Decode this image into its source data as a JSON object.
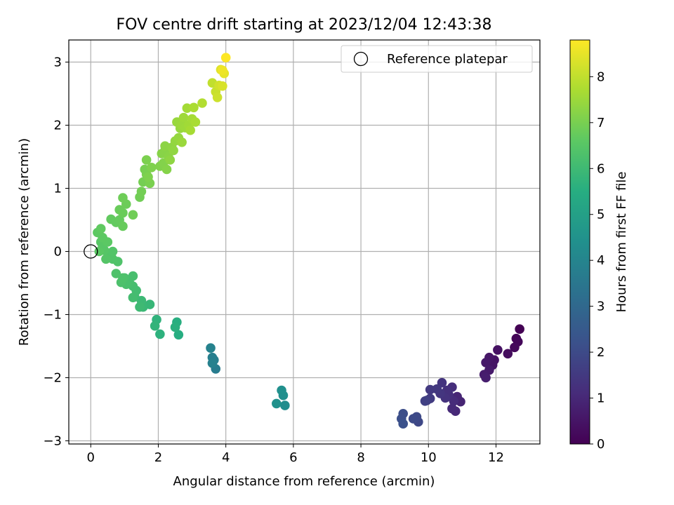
{
  "chart_data": {
    "type": "scatter",
    "title": "FOV centre drift starting at 2023/12/04 12:43:38",
    "xlabel": "Angular distance from reference (arcmin)",
    "ylabel": "Rotation from reference (arcmin)",
    "xlim": [
      -0.65,
      13.3
    ],
    "ylim": [
      -3.05,
      3.35
    ],
    "xticks": [
      0,
      2,
      4,
      6,
      8,
      10,
      12
    ],
    "yticks": [
      -3,
      -2,
      -1,
      0,
      1,
      2,
      3
    ],
    "grid": true,
    "legend": {
      "placement": "top-right",
      "entries": [
        {
          "label": "Reference platepar",
          "marker": "open-circle"
        }
      ]
    },
    "reference_point": {
      "x": 0,
      "y": 0
    },
    "colorbar": {
      "label": "Hours from first FF file",
      "range": [
        0,
        8.8
      ],
      "ticks": [
        0,
        1,
        2,
        3,
        4,
        5,
        6,
        7,
        8
      ],
      "colormap": "viridis"
    },
    "points": [
      [
        12.7,
        -1.23,
        0.0
      ],
      [
        12.6,
        -1.38,
        0.1
      ],
      [
        12.65,
        -1.43,
        0.15
      ],
      [
        12.55,
        -1.52,
        0.2
      ],
      [
        12.35,
        -1.62,
        0.3
      ],
      [
        12.05,
        -1.56,
        0.4
      ],
      [
        11.95,
        -1.72,
        0.45
      ],
      [
        11.9,
        -1.8,
        0.5
      ],
      [
        11.8,
        -1.68,
        0.55
      ],
      [
        11.7,
        -1.76,
        0.6
      ],
      [
        11.8,
        -1.88,
        0.65
      ],
      [
        11.65,
        -1.95,
        0.7
      ],
      [
        11.7,
        -2.0,
        0.75
      ],
      [
        10.95,
        -2.38,
        0.9
      ],
      [
        10.85,
        -2.3,
        0.95
      ],
      [
        10.8,
        -2.53,
        1.0
      ],
      [
        10.7,
        -2.49,
        1.05
      ],
      [
        10.75,
        -2.37,
        1.1
      ],
      [
        10.7,
        -2.15,
        1.15
      ],
      [
        10.6,
        -2.27,
        1.2
      ],
      [
        10.55,
        -2.2,
        1.25
      ],
      [
        10.5,
        -2.32,
        1.3
      ],
      [
        10.4,
        -2.08,
        1.35
      ],
      [
        10.35,
        -2.25,
        1.4
      ],
      [
        10.25,
        -2.18,
        1.45
      ],
      [
        10.05,
        -2.19,
        1.5
      ],
      [
        10.05,
        -2.33,
        1.55
      ],
      [
        9.95,
        -2.36,
        1.6
      ],
      [
        9.9,
        -2.37,
        1.7
      ],
      [
        9.7,
        -2.7,
        1.9
      ],
      [
        9.65,
        -2.62,
        1.95
      ],
      [
        9.55,
        -2.65,
        2.0
      ],
      [
        9.25,
        -2.57,
        2.1
      ],
      [
        9.2,
        -2.65,
        2.15
      ],
      [
        9.25,
        -2.73,
        2.2
      ],
      [
        3.7,
        -1.86,
        3.7
      ],
      [
        3.65,
        -1.72,
        3.75
      ],
      [
        3.6,
        -1.68,
        3.8
      ],
      [
        3.6,
        -1.77,
        3.85
      ],
      [
        3.55,
        -1.53,
        3.9
      ],
      [
        5.75,
        -2.44,
        4.3
      ],
      [
        5.7,
        -2.28,
        4.35
      ],
      [
        5.65,
        -2.2,
        4.4
      ],
      [
        5.5,
        -2.41,
        4.45
      ],
      [
        2.6,
        -1.32,
        5.5
      ],
      [
        2.55,
        -1.12,
        5.55
      ],
      [
        2.5,
        -1.2,
        5.6
      ],
      [
        2.05,
        -1.31,
        5.65
      ],
      [
        1.95,
        -1.08,
        5.7
      ],
      [
        1.9,
        -1.18,
        5.75
      ],
      [
        1.75,
        -0.84,
        5.85
      ],
      [
        1.55,
        -0.88,
        5.9
      ],
      [
        1.5,
        -0.78,
        5.95
      ],
      [
        1.45,
        -0.88,
        6.0
      ],
      [
        1.3,
        -0.72,
        6.05
      ],
      [
        1.35,
        -0.62,
        6.1
      ],
      [
        1.25,
        -0.73,
        6.12
      ],
      [
        1.25,
        -0.55,
        6.15
      ],
      [
        1.15,
        -0.5,
        6.18
      ],
      [
        1.25,
        -0.39,
        6.2
      ],
      [
        1.05,
        -0.52,
        6.22
      ],
      [
        1.0,
        -0.42,
        6.25
      ],
      [
        0.9,
        -0.49,
        6.28
      ],
      [
        0.95,
        -0.42,
        6.3
      ],
      [
        0.75,
        -0.35,
        6.32
      ],
      [
        0.8,
        -0.16,
        6.35
      ],
      [
        0.65,
        -0.12,
        6.38
      ],
      [
        0.6,
        -0.05,
        6.4
      ],
      [
        0.65,
        0.0,
        6.42
      ],
      [
        0.45,
        -0.12,
        6.45
      ],
      [
        0.4,
        0.02,
        6.48
      ],
      [
        0.35,
        0.08,
        6.5
      ],
      [
        0.3,
        0.15,
        6.52
      ],
      [
        0.25,
        0.0,
        6.55
      ],
      [
        0.5,
        0.15,
        6.58
      ],
      [
        0.35,
        0.22,
        6.6
      ],
      [
        0.2,
        0.3,
        6.62
      ],
      [
        0.3,
        0.36,
        6.65
      ],
      [
        0.6,
        0.51,
        6.68
      ],
      [
        0.75,
        0.46,
        6.7
      ],
      [
        0.85,
        0.5,
        6.72
      ],
      [
        0.95,
        0.4,
        6.75
      ],
      [
        0.85,
        0.66,
        6.78
      ],
      [
        0.95,
        0.61,
        6.8
      ],
      [
        1.05,
        0.75,
        6.82
      ],
      [
        0.95,
        0.85,
        6.85
      ],
      [
        1.25,
        0.58,
        6.88
      ],
      [
        1.45,
        0.86,
        6.9
      ],
      [
        1.5,
        0.95,
        6.92
      ],
      [
        1.55,
        1.1,
        6.95
      ],
      [
        1.6,
        1.3,
        6.98
      ],
      [
        1.65,
        1.22,
        7.0
      ],
      [
        1.75,
        1.08,
        7.02
      ],
      [
        1.65,
        1.45,
        7.05
      ],
      [
        1.7,
        1.18,
        7.08
      ],
      [
        1.8,
        1.33,
        7.1
      ],
      [
        2.05,
        1.35,
        7.12
      ],
      [
        2.15,
        1.4,
        7.15
      ],
      [
        2.25,
        1.3,
        7.18
      ],
      [
        2.1,
        1.55,
        7.2
      ],
      [
        2.2,
        1.6,
        7.22
      ],
      [
        2.3,
        1.5,
        7.25
      ],
      [
        2.2,
        1.67,
        7.28
      ],
      [
        2.4,
        1.65,
        7.3
      ],
      [
        2.35,
        1.45,
        7.32
      ],
      [
        2.45,
        1.6,
        7.35
      ],
      [
        2.5,
        1.75,
        7.38
      ],
      [
        2.6,
        1.8,
        7.4
      ],
      [
        2.65,
        1.95,
        7.42
      ],
      [
        2.55,
        2.05,
        7.45
      ],
      [
        2.7,
        1.73,
        7.48
      ],
      [
        2.7,
        2.0,
        7.5
      ],
      [
        2.8,
        1.96,
        7.52
      ],
      [
        2.75,
        2.12,
        7.55
      ],
      [
        2.9,
        2.0,
        7.58
      ],
      [
        2.85,
        2.27,
        7.6
      ],
      [
        3.0,
        2.1,
        7.62
      ],
      [
        2.95,
        1.92,
        7.65
      ],
      [
        3.1,
        2.05,
        7.68
      ],
      [
        3.05,
        2.28,
        7.7
      ],
      [
        3.3,
        2.35,
        7.8
      ],
      [
        3.6,
        2.67,
        8.0
      ],
      [
        3.7,
        2.53,
        8.1
      ],
      [
        3.75,
        2.44,
        8.15
      ],
      [
        3.8,
        2.63,
        8.2
      ],
      [
        3.9,
        2.62,
        8.3
      ],
      [
        3.85,
        2.88,
        8.4
      ],
      [
        3.95,
        2.82,
        8.5
      ],
      [
        3.9,
        2.87,
        8.6
      ],
      [
        4.0,
        3.07,
        8.8
      ]
    ]
  }
}
